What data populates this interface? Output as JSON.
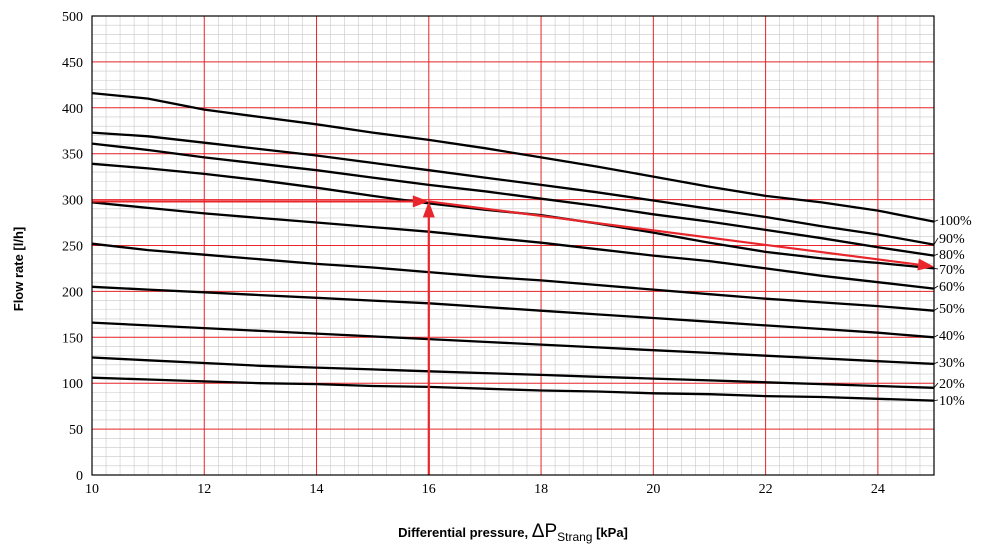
{
  "chart_data": {
    "type": "line",
    "title": "",
    "xlabel": {
      "main": "Differential pressure, ",
      "symbol": "ΔP",
      "subscript": "Strang",
      "unit": " [kPa]"
    },
    "ylabel": "Flow rate [l/h]",
    "xlim": [
      10,
      25
    ],
    "ylim": [
      0,
      500
    ],
    "xticks": [
      "10",
      "12",
      "14",
      "16",
      "18",
      "20",
      "22",
      "24"
    ],
    "yticks": [
      "0",
      "50",
      "100",
      "150",
      "200",
      "250",
      "300",
      "350",
      "400",
      "450",
      "500"
    ],
    "grid": true,
    "colors": {
      "major_grid": "#e8262b",
      "minor_grid": "#c8c8c8",
      "series": "#000000",
      "guide": "#e8262b"
    },
    "series": [
      {
        "name": "100%",
        "points": [
          [
            10,
            416
          ],
          [
            11,
            410
          ],
          [
            12,
            398
          ],
          [
            13,
            390
          ],
          [
            14,
            382
          ],
          [
            15,
            373
          ],
          [
            16,
            365
          ],
          [
            17,
            356
          ],
          [
            18,
            346
          ],
          [
            19,
            336
          ],
          [
            20,
            325
          ],
          [
            21,
            314
          ],
          [
            22,
            304
          ],
          [
            23,
            297
          ],
          [
            24,
            288
          ],
          [
            25,
            276
          ]
        ]
      },
      {
        "name": "90%",
        "points": [
          [
            10,
            373
          ],
          [
            11,
            369
          ],
          [
            12,
            362
          ],
          [
            13,
            355
          ],
          [
            14,
            348
          ],
          [
            15,
            340
          ],
          [
            16,
            332
          ],
          [
            17,
            324
          ],
          [
            18,
            316
          ],
          [
            19,
            308
          ],
          [
            20,
            299
          ],
          [
            21,
            290
          ],
          [
            22,
            281
          ],
          [
            23,
            271
          ],
          [
            24,
            262
          ],
          [
            25,
            251
          ]
        ]
      },
      {
        "name": "80%",
        "points": [
          [
            10,
            361
          ],
          [
            11,
            354
          ],
          [
            12,
            346
          ],
          [
            13,
            339
          ],
          [
            14,
            332
          ],
          [
            15,
            324
          ],
          [
            16,
            316
          ],
          [
            17,
            309
          ],
          [
            18,
            301
          ],
          [
            19,
            293
          ],
          [
            20,
            284
          ],
          [
            21,
            276
          ],
          [
            22,
            267
          ],
          [
            23,
            258
          ],
          [
            24,
            248
          ],
          [
            25,
            239
          ]
        ]
      },
      {
        "name": "70%",
        "points": [
          [
            10,
            339
          ],
          [
            11,
            334
          ],
          [
            12,
            328
          ],
          [
            13,
            321
          ],
          [
            14,
            313
          ],
          [
            15,
            304
          ],
          [
            16,
            296
          ],
          [
            17,
            289
          ],
          [
            18,
            283
          ],
          [
            19,
            274
          ],
          [
            20,
            264
          ],
          [
            21,
            253
          ],
          [
            22,
            243
          ],
          [
            23,
            236
          ],
          [
            24,
            231
          ],
          [
            25,
            225
          ]
        ]
      },
      {
        "name": "60%",
        "points": [
          [
            10,
            297
          ],
          [
            11,
            291
          ],
          [
            12,
            285
          ],
          [
            13,
            280
          ],
          [
            14,
            275
          ],
          [
            15,
            270
          ],
          [
            16,
            265
          ],
          [
            17,
            259
          ],
          [
            18,
            253
          ],
          [
            19,
            246
          ],
          [
            20,
            239
          ],
          [
            21,
            233
          ],
          [
            22,
            225
          ],
          [
            23,
            217
          ],
          [
            24,
            210
          ],
          [
            25,
            203
          ]
        ]
      },
      {
        "name": "50%",
        "points": [
          [
            10,
            252
          ],
          [
            11,
            245
          ],
          [
            12,
            240
          ],
          [
            13,
            235
          ],
          [
            14,
            230
          ],
          [
            15,
            226
          ],
          [
            16,
            221
          ],
          [
            17,
            216
          ],
          [
            18,
            212
          ],
          [
            19,
            207
          ],
          [
            20,
            202
          ],
          [
            21,
            197
          ],
          [
            22,
            192
          ],
          [
            23,
            188
          ],
          [
            24,
            184
          ],
          [
            25,
            179
          ]
        ]
      },
      {
        "name": "40%",
        "points": [
          [
            10,
            205
          ],
          [
            11,
            202
          ],
          [
            12,
            199
          ],
          [
            13,
            196
          ],
          [
            14,
            193
          ],
          [
            15,
            190
          ],
          [
            16,
            187
          ],
          [
            17,
            183
          ],
          [
            18,
            179
          ],
          [
            19,
            175
          ],
          [
            20,
            171
          ],
          [
            21,
            167
          ],
          [
            22,
            163
          ],
          [
            23,
            159
          ],
          [
            24,
            155
          ],
          [
            25,
            150
          ]
        ]
      },
      {
        "name": "30%",
        "points": [
          [
            10,
            166
          ],
          [
            11,
            163
          ],
          [
            12,
            160
          ],
          [
            13,
            157
          ],
          [
            14,
            154
          ],
          [
            15,
            151
          ],
          [
            16,
            148
          ],
          [
            17,
            145
          ],
          [
            18,
            142
          ],
          [
            19,
            139
          ],
          [
            20,
            136
          ],
          [
            21,
            133
          ],
          [
            22,
            130
          ],
          [
            23,
            127
          ],
          [
            24,
            124
          ],
          [
            25,
            121
          ]
        ]
      },
      {
        "name": "20%",
        "points": [
          [
            10,
            128
          ],
          [
            11,
            125
          ],
          [
            12,
            122
          ],
          [
            13,
            119
          ],
          [
            14,
            117
          ],
          [
            15,
            115
          ],
          [
            16,
            113
          ],
          [
            17,
            111
          ],
          [
            18,
            109
          ],
          [
            19,
            107
          ],
          [
            20,
            105
          ],
          [
            21,
            103
          ],
          [
            22,
            101
          ],
          [
            23,
            99
          ],
          [
            24,
            97
          ],
          [
            25,
            95
          ]
        ]
      },
      {
        "name": "10%",
        "points": [
          [
            10,
            106
          ],
          [
            11,
            104
          ],
          [
            12,
            102
          ],
          [
            13,
            100
          ],
          [
            14,
            99
          ],
          [
            15,
            97
          ],
          [
            16,
            96
          ],
          [
            17,
            94
          ],
          [
            18,
            92
          ],
          [
            19,
            91
          ],
          [
            20,
            89
          ],
          [
            21,
            88
          ],
          [
            22,
            86
          ],
          [
            23,
            85
          ],
          [
            24,
            83
          ],
          [
            25,
            81
          ]
        ]
      }
    ],
    "guide": {
      "points": [
        [
          10,
          298
        ],
        [
          16,
          298
        ],
        [
          16,
          0
        ]
      ],
      "follow": [
        [
          16,
          298
        ],
        [
          25,
          227
        ]
      ]
    }
  }
}
